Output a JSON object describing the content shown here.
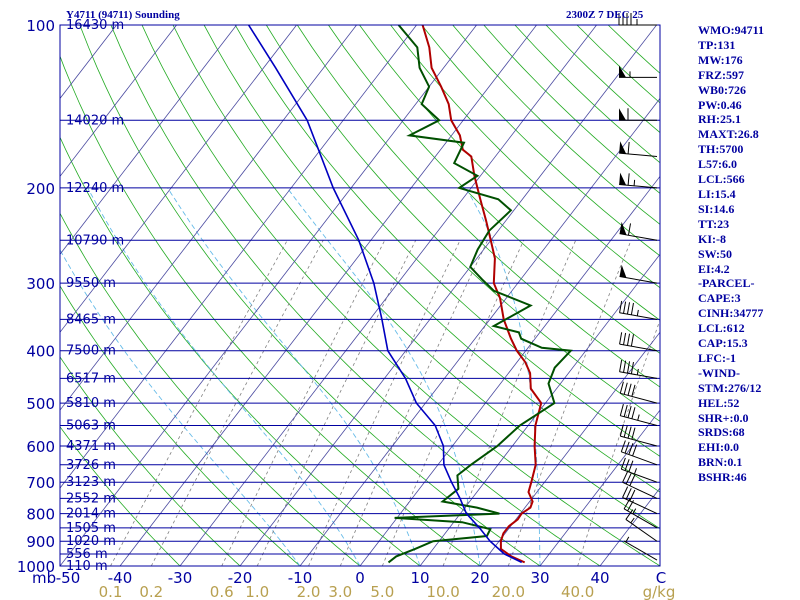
{
  "header": {
    "station": "Y4711 (94711) Sounding",
    "time": "2300Z  7 DEC 25"
  },
  "indices": [
    "WMO:94711",
    "TP:131",
    "MW:176",
    "FRZ:597",
    "WB0:726",
    "PW:0.46",
    "RH:25.1",
    "MAXT:26.8",
    "TH:5700",
    "L57:6.0",
    "LCL:566",
    "LI:15.4",
    "SI:14.6",
    "TT:23",
    "KI:-8",
    "SW:50",
    "EI:4.2",
    "-PARCEL-",
    "CAPE:3",
    "CINH:34777",
    "LCL:612",
    "CAP:15.3",
    "LFC:-1",
    "-WIND-",
    "STM:276/12",
    "HEL:52",
    "SHR+:0.0",
    "SRDS:68",
    "EHI:0.0",
    "BRN:0.1",
    "BSHR:46"
  ],
  "colors": {
    "frame": "#0000a0",
    "isobar": "#0000a0",
    "isotherm": "#4a4aa0",
    "dry_adiabat": "#22aa22",
    "moist_adiabat": "#66bbe8",
    "mixing_ratio": "#808080",
    "temperature": "#b00000",
    "dewpoint": "#005000",
    "parcel": "#0000c0",
    "wind_barb": "#000000"
  },
  "chart_data": {
    "type": "line",
    "title": "Y4711 (94711) Sounding",
    "xlim": [
      -50,
      50
    ],
    "pressure_range": [
      1000,
      100
    ],
    "temperature_ticks": [
      "-50",
      "-40",
      "-30",
      "-20",
      "-10",
      "0",
      "10",
      "20",
      "30",
      "40"
    ],
    "x_axis_prefix": "mb",
    "mixing_ratio_ticks": [
      "0.1",
      "0.2",
      "0.6",
      "1.0",
      "2.0",
      "3.0",
      "5.0",
      "10.0",
      "20.0",
      "40.0"
    ],
    "mixing_ratio_unit": "g/kg",
    "pressure_labels": [
      {
        "p": 100,
        "label": "100",
        "height": "16430 m"
      },
      {
        "p": 150,
        "label": "",
        "height": "14020 m"
      },
      {
        "p": 200,
        "label": "200",
        "height": "12240 m"
      },
      {
        "p": 250,
        "label": "",
        "height": "10790 m"
      },
      {
        "p": 300,
        "label": "300",
        "height": "9550 m"
      },
      {
        "p": 350,
        "label": "",
        "height": "8465 m"
      },
      {
        "p": 400,
        "label": "400",
        "height": "7500 m"
      },
      {
        "p": 450,
        "label": "",
        "height": "6517 m"
      },
      {
        "p": 500,
        "label": "500",
        "height": "5810 m"
      },
      {
        "p": 550,
        "label": "",
        "height": "5063 m"
      },
      {
        "p": 600,
        "label": "600",
        "height": "4371 m"
      },
      {
        "p": 650,
        "label": "",
        "height": "3726 m"
      },
      {
        "p": 700,
        "label": "700",
        "height": "3123 m"
      },
      {
        "p": 750,
        "label": "",
        "height": "2552 m"
      },
      {
        "p": 800,
        "label": "800",
        "height": "2014 m"
      },
      {
        "p": 850,
        "label": "",
        "height": "1505 m"
      },
      {
        "p": 900,
        "label": "900",
        "height": "1020 m"
      },
      {
        "p": 950,
        "label": "",
        "height": "556 m"
      },
      {
        "p": 1000,
        "label": "1000",
        "height": "110 m"
      }
    ],
    "series": [
      {
        "key": "temperature",
        "values": [
          [
            985,
            27.0
          ],
          [
            960,
            24.0
          ],
          [
            930,
            21.3
          ],
          [
            900,
            20.3
          ],
          [
            870,
            19.7
          ],
          [
            845,
            19.7
          ],
          [
            820,
            20.3
          ],
          [
            800,
            20.2
          ],
          [
            780,
            20.9
          ],
          [
            760,
            20.5
          ],
          [
            730,
            18.6
          ],
          [
            700,
            17.8
          ],
          [
            650,
            16.3
          ],
          [
            600,
            13.7
          ],
          [
            550,
            11.2
          ],
          [
            500,
            9.3
          ],
          [
            470,
            5.7
          ],
          [
            440,
            3.6
          ],
          [
            420,
            1.4
          ],
          [
            400,
            -1.5
          ],
          [
            380,
            -4.0
          ],
          [
            350,
            -7.7
          ],
          [
            320,
            -11.0
          ],
          [
            300,
            -14.0
          ],
          [
            270,
            -17.0
          ],
          [
            250,
            -20.0
          ],
          [
            230,
            -23.3
          ],
          [
            210,
            -27.0
          ],
          [
            190,
            -31.0
          ],
          [
            175,
            -34.0
          ],
          [
            170,
            -36.3
          ],
          [
            160,
            -38.6
          ],
          [
            150,
            -42.0
          ],
          [
            140,
            -44.5
          ],
          [
            130,
            -48.0
          ],
          [
            120,
            -52.0
          ],
          [
            110,
            -55.0
          ],
          [
            100,
            -59.0
          ]
        ]
      },
      {
        "key": "dewpoint",
        "values": [
          [
            985,
            4.3
          ],
          [
            960,
            4.8
          ],
          [
            930,
            7.0
          ],
          [
            900,
            9.0
          ],
          [
            880,
            17.3
          ],
          [
            855,
            17.0
          ],
          [
            830,
            11.4
          ],
          [
            815,
            -0.4
          ],
          [
            800,
            16.5
          ],
          [
            780,
            12.0
          ],
          [
            760,
            5.5
          ],
          [
            720,
            6.5
          ],
          [
            680,
            4.6
          ],
          [
            650,
            5.5
          ],
          [
            600,
            7.5
          ],
          [
            550,
            8.6
          ],
          [
            500,
            11.5
          ],
          [
            460,
            8.0
          ],
          [
            430,
            7.0
          ],
          [
            400,
            7.5
          ],
          [
            395,
            2.3
          ],
          [
            380,
            -2.3
          ],
          [
            370,
            -3.5
          ],
          [
            360,
            -8.5
          ],
          [
            330,
            -5.0
          ],
          [
            310,
            -13.0
          ],
          [
            295,
            -16.5
          ],
          [
            280,
            -20.0
          ],
          [
            260,
            -21.0
          ],
          [
            240,
            -21.5
          ],
          [
            220,
            -20.5
          ],
          [
            210,
            -24.0
          ],
          [
            200,
            -32.0
          ],
          [
            190,
            -30.5
          ],
          [
            180,
            -36.0
          ],
          [
            165,
            -37.0
          ],
          [
            160,
            -47.0
          ],
          [
            150,
            -44.0
          ],
          [
            140,
            -49.0
          ],
          [
            130,
            -50.0
          ],
          [
            120,
            -54.0
          ],
          [
            110,
            -57.0
          ],
          [
            100,
            -63.0
          ]
        ]
      },
      {
        "key": "parcel",
        "values": [
          [
            985,
            26.5
          ],
          [
            950,
            22.5
          ],
          [
            900,
            18.5
          ],
          [
            850,
            15.0
          ],
          [
            800,
            11.0
          ],
          [
            750,
            8.0
          ],
          [
            700,
            4.5
          ],
          [
            650,
            1.0
          ],
          [
            600,
            -1.5
          ],
          [
            550,
            -5.5
          ],
          [
            500,
            -11.5
          ],
          [
            450,
            -16.5
          ],
          [
            400,
            -23.0
          ],
          [
            350,
            -28.0
          ],
          [
            300,
            -34.0
          ],
          [
            250,
            -42.0
          ],
          [
            200,
            -53.0
          ],
          [
            150,
            -66.0
          ],
          [
            120,
            -78.0
          ],
          [
            100,
            -88.0
          ]
        ]
      }
    ],
    "winds": [
      {
        "p": 975,
        "dir": 300,
        "spd": 5
      },
      {
        "p": 900,
        "dir": 305,
        "spd": 15
      },
      {
        "p": 850,
        "dir": 300,
        "spd": 25
      },
      {
        "p": 800,
        "dir": 295,
        "spd": 30
      },
      {
        "p": 750,
        "dir": 295,
        "spd": 30
      },
      {
        "p": 700,
        "dir": 290,
        "spd": 35
      },
      {
        "p": 650,
        "dir": 290,
        "spd": 40
      },
      {
        "p": 600,
        "dir": 285,
        "spd": 40
      },
      {
        "p": 550,
        "dir": 285,
        "spd": 45
      },
      {
        "p": 500,
        "dir": 285,
        "spd": 40
      },
      {
        "p": 450,
        "dir": 280,
        "spd": 45
      },
      {
        "p": 400,
        "dir": 280,
        "spd": 40
      },
      {
        "p": 350,
        "dir": 280,
        "spd": 45
      },
      {
        "p": 300,
        "dir": 280,
        "spd": 50
      },
      {
        "p": 250,
        "dir": 280,
        "spd": 60
      },
      {
        "p": 200,
        "dir": 275,
        "spd": 65
      },
      {
        "p": 175,
        "dir": 275,
        "spd": 60
      },
      {
        "p": 150,
        "dir": 270,
        "spd": 60
      },
      {
        "p": 125,
        "dir": 270,
        "spd": 55
      },
      {
        "p": 100,
        "dir": 270,
        "spd": 45
      }
    ],
    "grid": true
  }
}
